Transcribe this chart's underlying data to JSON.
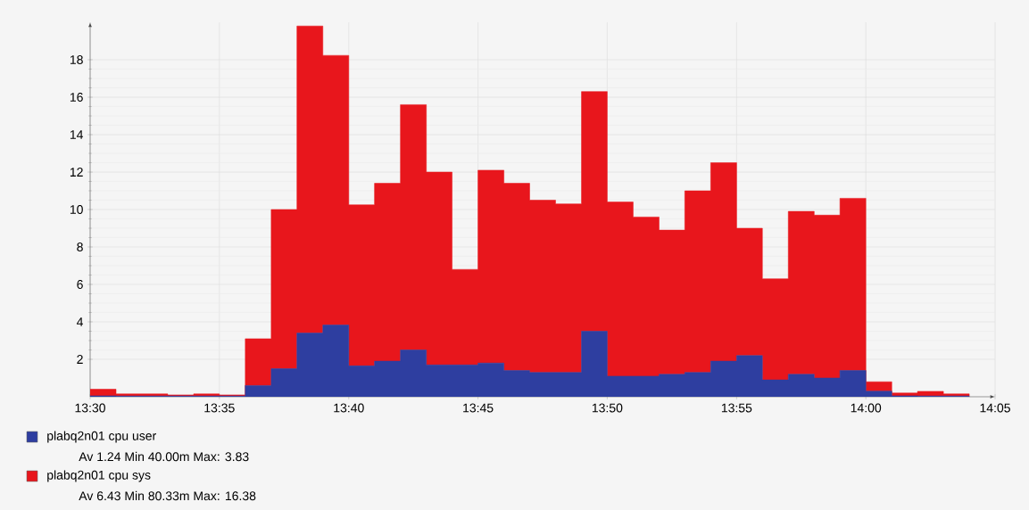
{
  "chart_data": {
    "type": "area",
    "stacked": true,
    "x": [
      13.5,
      13.5167,
      13.5333,
      13.55,
      13.5667,
      13.5833,
      13.6,
      13.6167,
      13.6333,
      13.65,
      13.6667,
      13.6833,
      13.7,
      13.7167,
      13.7333,
      13.75,
      13.7667,
      13.7833,
      13.8,
      13.8167,
      13.8333,
      13.85,
      13.8667,
      13.8833,
      13.9,
      13.9167,
      13.9333,
      13.95,
      13.9667,
      13.9833,
      14.0,
      14.0167,
      14.0333,
      14.05,
      14.0667
    ],
    "series": [
      {
        "name": "plabq2n01 cpu user",
        "color": "#2e3ea0",
        "values": [
          0.05,
          0.04,
          0.04,
          0.04,
          0.04,
          0.04,
          0.6,
          1.5,
          3.4,
          3.83,
          1.65,
          1.9,
          2.5,
          1.7,
          1.7,
          1.8,
          1.4,
          1.3,
          1.3,
          3.5,
          1.1,
          1.1,
          1.2,
          1.3,
          1.9,
          2.2,
          0.9,
          1.2,
          1.0,
          1.4,
          0.3,
          0.05,
          0.04,
          0.04,
          0.04
        ]
      },
      {
        "name": "plabq2n01 cpu sys",
        "color": "#e8161c",
        "values": [
          0.35,
          0.11,
          0.11,
          0.06,
          0.11,
          0.06,
          2.5,
          8.5,
          16.4,
          14.4,
          8.6,
          9.5,
          13.1,
          10.3,
          5.1,
          10.3,
          10.0,
          9.2,
          9.0,
          12.8,
          9.3,
          8.5,
          7.7,
          9.7,
          10.6,
          6.8,
          5.4,
          8.7,
          8.7,
          9.2,
          0.5,
          0.15,
          0.25,
          0.11,
          0.04
        ]
      }
    ],
    "xlim": [
      13.5,
      14.0833
    ],
    "ylim": [
      0,
      20
    ],
    "xticks": [
      {
        "value": 13.5,
        "label": "13:30"
      },
      {
        "value": 13.5833,
        "label": "13:35"
      },
      {
        "value": 13.6667,
        "label": "13:40"
      },
      {
        "value": 13.75,
        "label": "13:45"
      },
      {
        "value": 13.8333,
        "label": "13:50"
      },
      {
        "value": 13.9167,
        "label": "13:55"
      },
      {
        "value": 14.0,
        "label": "14:00"
      },
      {
        "value": 14.0833,
        "label": "14:05"
      }
    ],
    "yticks": [
      2,
      4,
      6,
      8,
      10,
      12,
      14,
      16,
      18
    ],
    "grid": true,
    "legend": "bottom",
    "annotations": [
      "Av   1.24   Min   40.00m   Max:   3.83",
      "Av   6.43   Min   80.33m   Max:   16.38"
    ]
  }
}
